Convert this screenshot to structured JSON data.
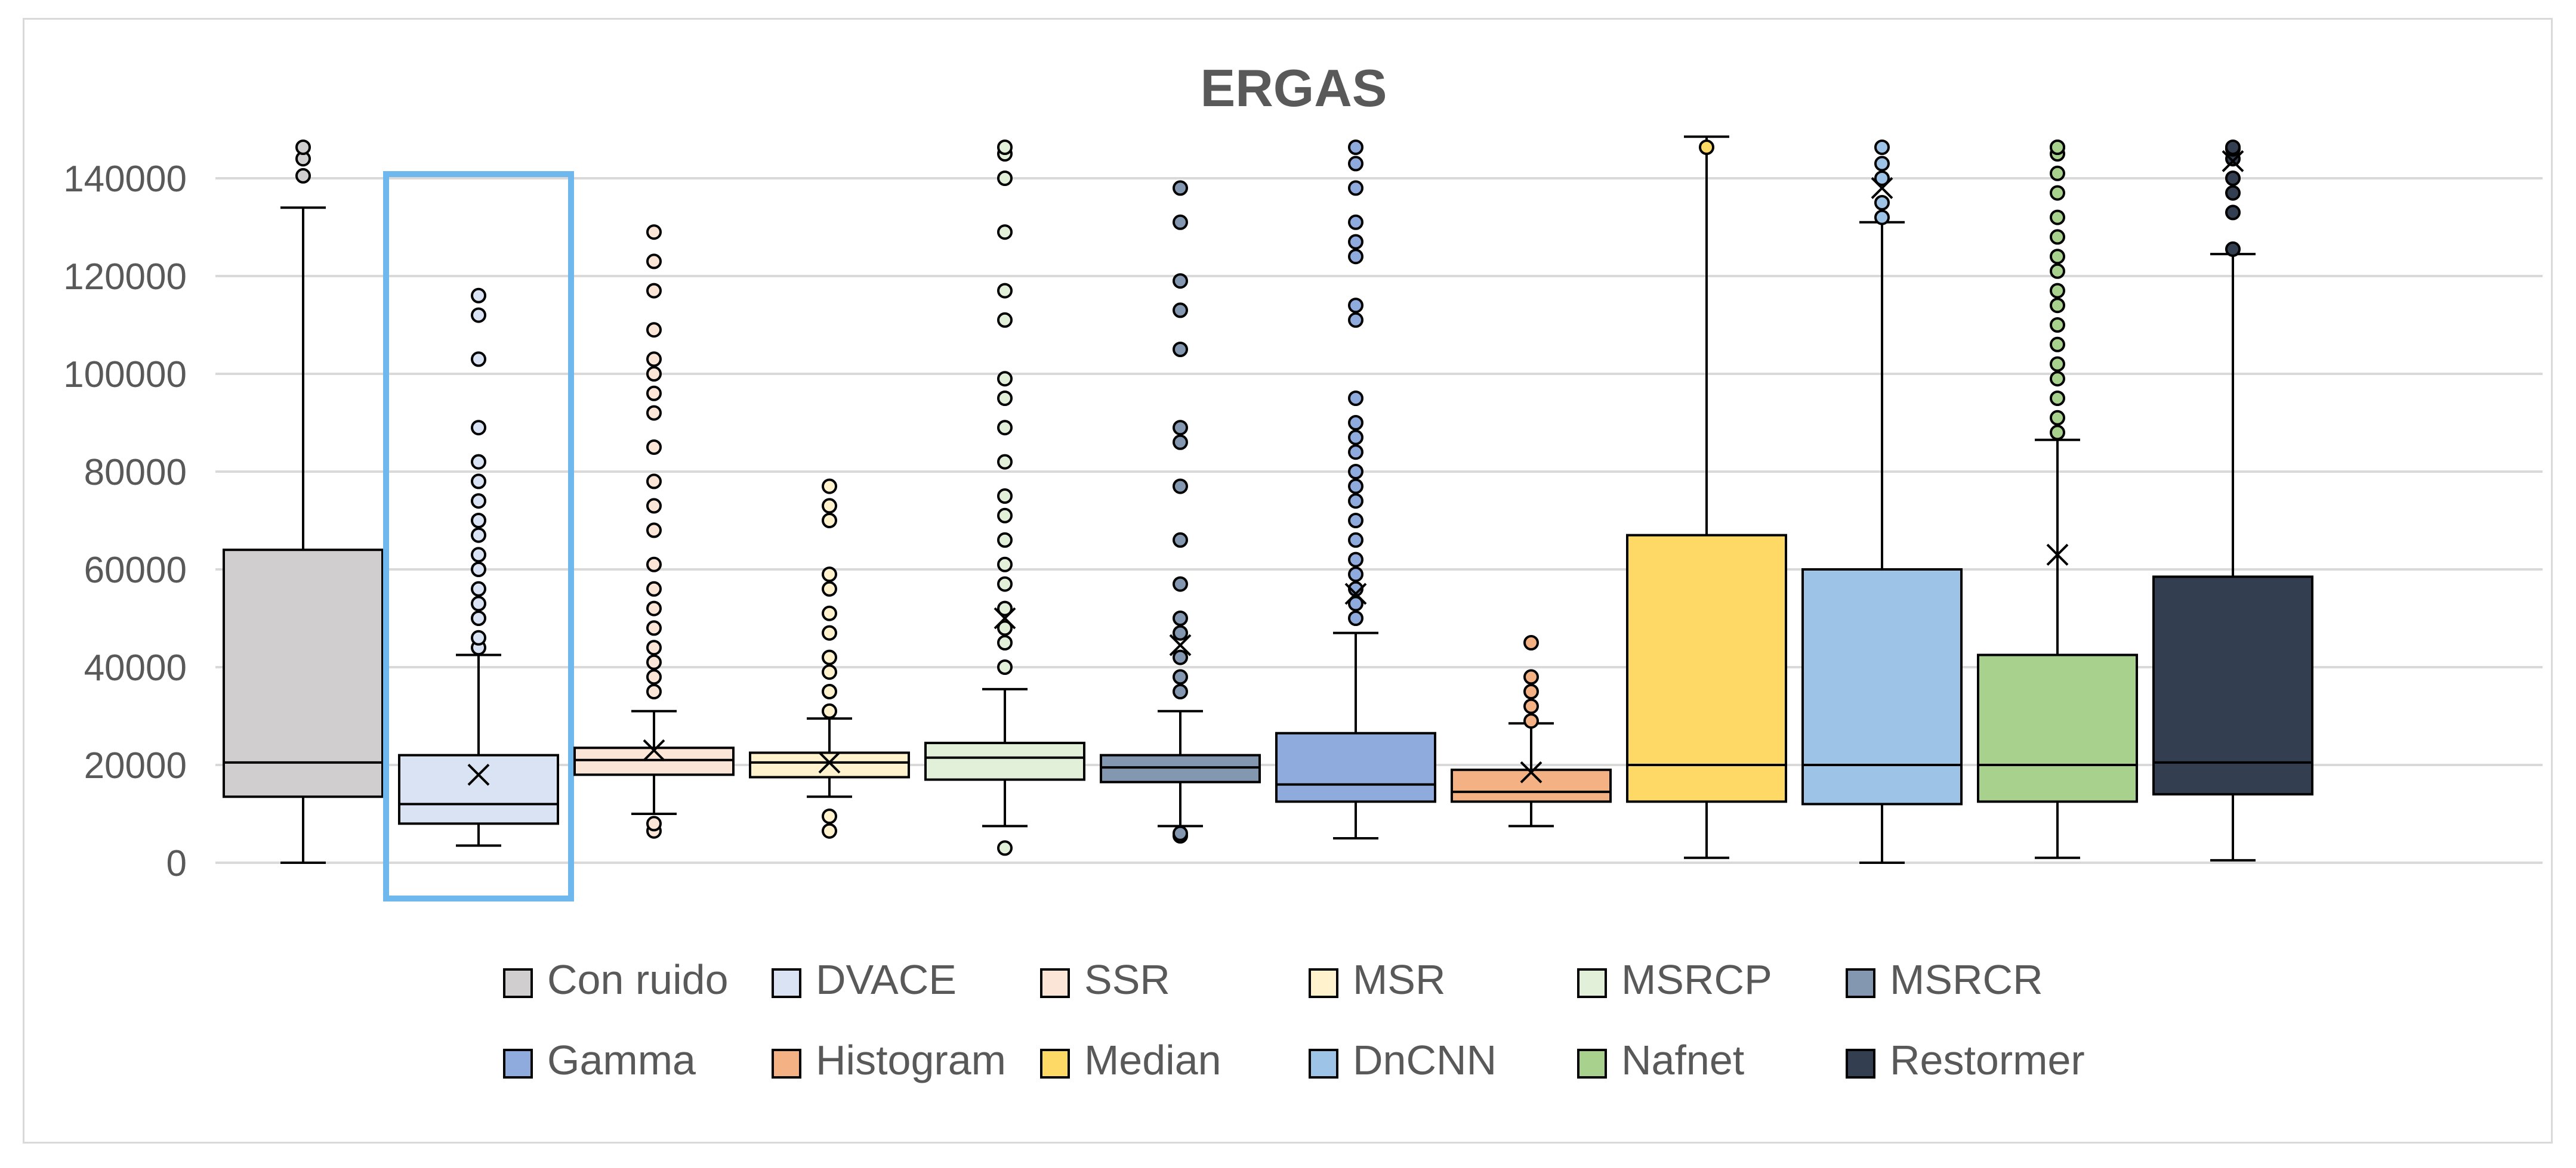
{
  "chart_data": {
    "type": "box",
    "title": "ERGAS",
    "xlabel": "",
    "ylabel": "",
    "ylim": [
      0,
      150000
    ],
    "yticks": [
      0,
      20000,
      40000,
      60000,
      80000,
      100000,
      120000,
      140000
    ],
    "ytick_labels": [
      "0",
      "20000",
      "40000",
      "60000",
      "80000",
      "100000",
      "120000",
      "140000"
    ],
    "grid": true,
    "legend_position": "bottom",
    "highlight_series": "DVACE",
    "highlight_color": "#6fb8ee",
    "series": [
      {
        "name": "Con ruido",
        "color": "#d0cece",
        "min": 0,
        "q1": 13500,
        "median": 20500,
        "q3": 64000,
        "max": 134000,
        "mean": null,
        "outliers": [
          140500,
          144000,
          146500
        ]
      },
      {
        "name": "DVACE",
        "color": "#dae3f3",
        "min": 3500,
        "q1": 8000,
        "median": 12000,
        "q3": 22000,
        "max": 42500,
        "mean": 18000,
        "outliers": [
          44000,
          46000,
          50000,
          53000,
          56000,
          60000,
          63000,
          67000,
          70000,
          74000,
          78000,
          82000,
          89000,
          103000,
          112000,
          116000
        ]
      },
      {
        "name": "SSR",
        "color": "#fbe5d6",
        "min": 10000,
        "q1": 18000,
        "median": 21000,
        "q3": 23500,
        "max": 31000,
        "mean": 23000,
        "outliers": [
          6500,
          8000,
          35000,
          38000,
          41000,
          44000,
          48000,
          52000,
          56000,
          61000,
          68000,
          73000,
          78000,
          85000,
          92000,
          96000,
          100000,
          103000,
          109000,
          117000,
          123000,
          129000
        ]
      },
      {
        "name": "MSR",
        "color": "#fff2cc",
        "min": 13500,
        "q1": 17500,
        "median": 20500,
        "q3": 22500,
        "max": 29500,
        "mean": 20500,
        "outliers": [
          6500,
          9500,
          31000,
          35000,
          39000,
          42000,
          47000,
          51000,
          56000,
          59000,
          70000,
          73000,
          77000
        ]
      },
      {
        "name": "MSRCP",
        "color": "#e2f0d9",
        "min": 7500,
        "q1": 17000,
        "median": 21500,
        "q3": 24500,
        "max": 35500,
        "mean": 50000,
        "outliers": [
          3000,
          40000,
          45000,
          48000,
          52000,
          57000,
          61000,
          66000,
          71000,
          75000,
          82000,
          89000,
          95000,
          99000,
          111000,
          117000,
          129000,
          140000,
          145000,
          149000
        ]
      },
      {
        "name": "MSRCR",
        "color": "#8497b0",
        "min": 7500,
        "q1": 16500,
        "median": 19500,
        "q3": 22000,
        "max": 31000,
        "mean": 44500,
        "outliers": [
          5500,
          6000,
          35000,
          38000,
          42000,
          47000,
          50000,
          57000,
          66000,
          77000,
          86000,
          89000,
          105000,
          113000,
          119000,
          131000,
          138000
        ]
      },
      {
        "name": "Gamma",
        "color": "#8faadc",
        "min": 5000,
        "q1": 12500,
        "median": 16000,
        "q3": 26500,
        "max": 47000,
        "mean": 55000,
        "outliers": [
          50000,
          53000,
          56000,
          59000,
          62000,
          66000,
          70000,
          74000,
          77000,
          80000,
          84000,
          87000,
          90000,
          95000,
          111000,
          114000,
          124000,
          127000,
          131000,
          138000,
          143000,
          147000
        ]
      },
      {
        "name": "Histogram",
        "color": "#f4b183",
        "min": 7500,
        "q1": 12500,
        "median": 14500,
        "q3": 19000,
        "max": 28500,
        "mean": 18500,
        "outliers": [
          29000,
          32000,
          35000,
          38000,
          45000
        ]
      },
      {
        "name": "Median",
        "color": "#ffd966",
        "min": 1000,
        "q1": 12500,
        "median": 20000,
        "q3": 67000,
        "max": 148500,
        "mean": null,
        "outliers": [
          150500
        ]
      },
      {
        "name": "DnCNN",
        "color": "#9dc3e6",
        "min": 0,
        "q1": 12000,
        "median": 20000,
        "q3": 60000,
        "max": 131000,
        "mean": 138000,
        "outliers": [
          132000,
          135000,
          140000,
          143000,
          146500
        ]
      },
      {
        "name": "Nafnet",
        "color": "#a9d18e",
        "min": 1000,
        "q1": 12500,
        "median": 20000,
        "q3": 42500,
        "max": 86500,
        "mean": 63000,
        "outliers": [
          88000,
          91000,
          95000,
          99000,
          102000,
          106000,
          110000,
          114000,
          117000,
          121000,
          124000,
          128000,
          132000,
          137000,
          141000,
          145000,
          148000,
          151000
        ]
      },
      {
        "name": "Restormer",
        "color": "#333f50",
        "min": 500,
        "q1": 14000,
        "median": 20500,
        "q3": 58500,
        "max": 124500,
        "mean": 143500,
        "outliers": [
          125500,
          133000,
          137000,
          140000,
          144000,
          146000,
          151000
        ]
      }
    ]
  }
}
